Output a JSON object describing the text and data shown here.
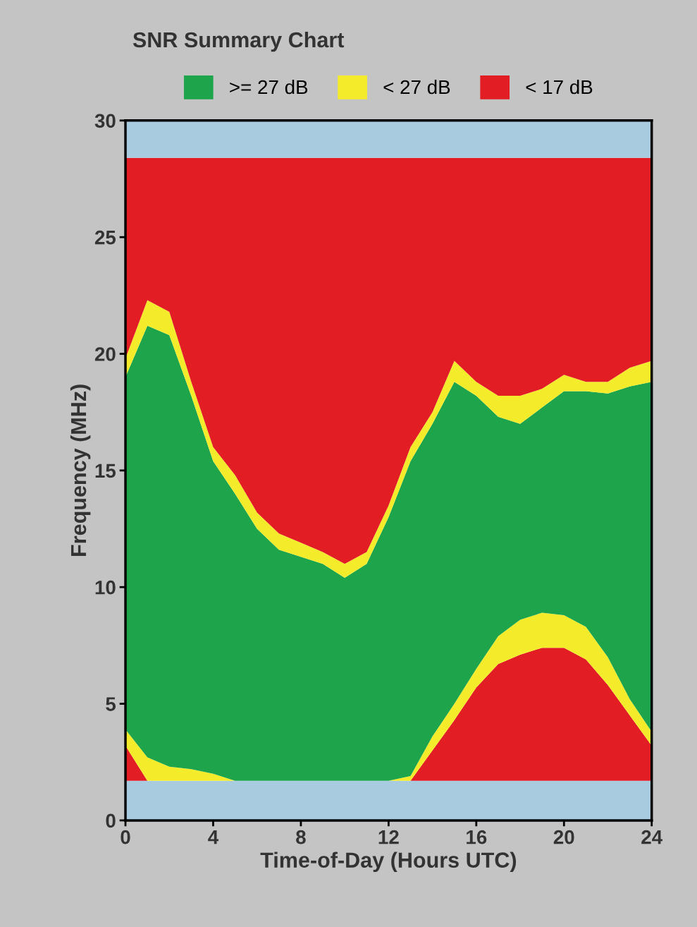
{
  "chart_data": {
    "type": "area",
    "title": "SNR Summary Chart",
    "xlabel": "Time-of-Day (Hours UTC)",
    "ylabel": "Frequency (MHz)",
    "stacked": true,
    "legend": "top",
    "grid": false,
    "x": [
      0,
      1,
      2,
      3,
      4,
      5,
      6,
      7,
      8,
      9,
      10,
      11,
      12,
      13,
      14,
      15,
      16,
      17,
      18,
      19,
      20,
      21,
      22,
      23,
      24
    ],
    "xlim": [
      0,
      24
    ],
    "xticks": [
      0,
      4,
      8,
      12,
      16,
      20,
      24
    ],
    "ylim": [
      0,
      30
    ],
    "yticks": [
      0,
      5,
      10,
      15,
      20,
      25,
      30
    ],
    "series": [
      {
        "color": "#a9cbdf",
        "values": [
          1.7,
          1.7,
          1.7,
          1.7,
          1.7,
          1.7,
          1.7,
          1.7,
          1.7,
          1.7,
          1.7,
          1.7,
          1.7,
          1.7,
          1.7,
          1.7,
          1.7,
          1.7,
          1.7,
          1.7,
          1.7,
          1.7,
          1.7,
          1.7,
          1.7
        ]
      },
      {
        "color": "#e21d24",
        "values": [
          1.5,
          0,
          0,
          0,
          0,
          0,
          0,
          0,
          0,
          0,
          0,
          0,
          0,
          0,
          1.3,
          2.6,
          4.0,
          5.0,
          5.4,
          5.7,
          5.7,
          5.2,
          4.1,
          2.8,
          1.5
        ]
      },
      {
        "color": "#f4ec2b",
        "values": [
          0.7,
          1.0,
          0.6,
          0.5,
          0.3,
          0,
          0,
          0,
          0,
          0,
          0,
          0,
          0,
          0.2,
          0.6,
          0.7,
          0.8,
          1.2,
          1.5,
          1.5,
          1.4,
          1.4,
          1.2,
          0.7,
          0.6
        ]
      },
      {
        "name": ">= 27 dB",
        "color": "#1ea54b",
        "values": [
          15.1,
          18.5,
          18.5,
          16.0,
          13.4,
          12.3,
          10.8,
          9.9,
          9.6,
          9.3,
          8.7,
          9.3,
          11.3,
          13.5,
          13.4,
          13.8,
          11.7,
          9.4,
          8.4,
          8.8,
          9.6,
          10.1,
          11.3,
          13.4,
          15.0
        ]
      },
      {
        "name": "< 27 dB",
        "color": "#f4ec2b",
        "values": [
          0.8,
          1.1,
          1.0,
          0.6,
          0.6,
          0.8,
          0.7,
          0.7,
          0.6,
          0.5,
          0.6,
          0.5,
          0.5,
          0.6,
          0.5,
          0.9,
          0.6,
          0.9,
          1.2,
          0.8,
          0.7,
          0.4,
          0.5,
          0.8,
          0.9
        ]
      },
      {
        "name": "< 17 dB",
        "color": "#e21d24",
        "values": [
          8.6,
          6.1,
          6.6,
          9.6,
          12.4,
          13.6,
          15.2,
          16.1,
          16.5,
          16.9,
          17.4,
          16.9,
          14.9,
          12.4,
          10.9,
          8.7,
          9.6,
          10.2,
          10.2,
          9.9,
          9.3,
          9.6,
          9.6,
          9.0,
          8.7
        ]
      },
      {
        "color": "#a9cbdf",
        "values": [
          1.6,
          1.6,
          1.6,
          1.6,
          1.6,
          1.6,
          1.6,
          1.6,
          1.6,
          1.6,
          1.6,
          1.6,
          1.6,
          1.6,
          1.6,
          1.6,
          1.6,
          1.6,
          1.6,
          1.6,
          1.6,
          1.6,
          1.6,
          1.6,
          1.6
        ]
      }
    ]
  }
}
